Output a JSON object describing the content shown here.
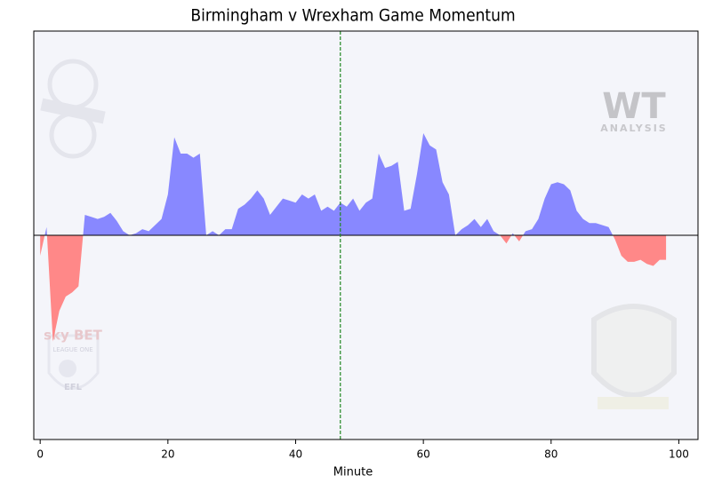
{
  "chart_data": {
    "type": "momentum",
    "title": "Birmingham v Wrexham Game Momentum",
    "x_label": "Minute",
    "x": [
      0,
      1,
      2,
      3,
      4,
      5,
      6,
      7,
      8,
      9,
      10,
      11,
      12,
      13,
      14,
      15,
      16,
      17,
      18,
      19,
      20,
      21,
      22,
      23,
      24,
      25,
      26,
      27,
      28,
      29,
      30,
      31,
      32,
      33,
      34,
      35,
      36,
      37,
      38,
      39,
      40,
      41,
      42,
      43,
      44,
      45,
      46,
      47,
      48,
      49,
      50,
      51,
      52,
      53,
      54,
      55,
      56,
      57,
      58,
      59,
      60,
      61,
      62,
      63,
      64,
      65,
      66,
      67,
      68,
      69,
      70,
      71,
      72,
      73,
      74,
      75,
      76,
      77,
      78,
      79,
      80,
      81,
      82,
      83,
      84,
      85,
      86,
      87,
      88,
      89,
      90,
      91,
      92,
      93,
      94,
      95,
      96,
      97,
      98
    ],
    "values": [
      -10,
      4,
      -52,
      -37,
      -30,
      -28,
      -25,
      10,
      9,
      8,
      9,
      11,
      7,
      2,
      0,
      1,
      3,
      2,
      5,
      8,
      20,
      48,
      40,
      40,
      38,
      40,
      0,
      2,
      0,
      3,
      3,
      13,
      15,
      18,
      22,
      18,
      10,
      14,
      18,
      17,
      16,
      20,
      18,
      20,
      12,
      14,
      12,
      16,
      14,
      18,
      12,
      16,
      18,
      40,
      33,
      34,
      36,
      12,
      13,
      30,
      50,
      44,
      42,
      26,
      20,
      0,
      3,
      5,
      8,
      4,
      8,
      2,
      0,
      -4,
      1,
      -3,
      2,
      3,
      8,
      18,
      25,
      26,
      25,
      22,
      12,
      8,
      6,
      6,
      5,
      4,
      -2,
      -10,
      -13,
      -13,
      -12,
      -14,
      -15,
      -12,
      -12
    ],
    "color_positive": "#8888ff",
    "color_negative": "#ff8888",
    "xlim": [
      -1,
      103
    ],
    "ylim": [
      -100,
      100
    ],
    "xticks": [
      0,
      20,
      40,
      60,
      80,
      100
    ],
    "vline": 47,
    "vline_color": "#228822",
    "watermarks": [
      "WT",
      "ANALYSIS",
      "sky BET",
      "LEAGUE ONE",
      "EFL"
    ]
  }
}
